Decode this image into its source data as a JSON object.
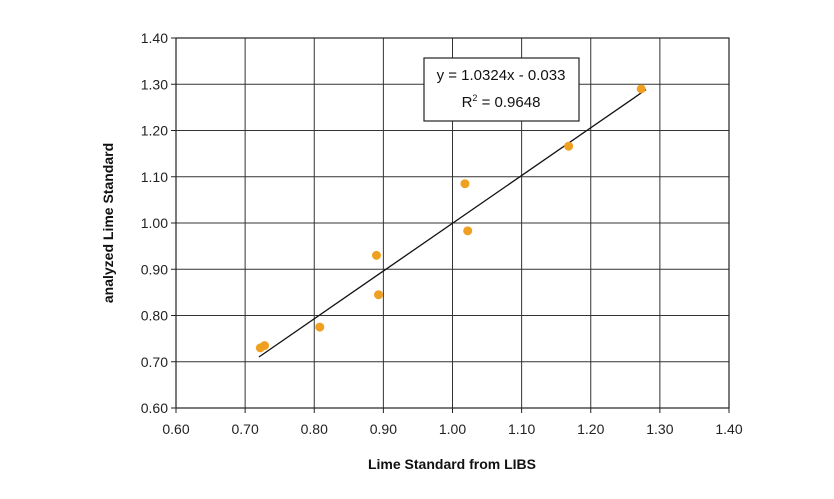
{
  "chart_data": {
    "type": "scatter",
    "xlabel": "Lime Standard from LIBS",
    "ylabel": "analyzed Lime Standard",
    "xlim": [
      0.6,
      1.4
    ],
    "ylim": [
      0.6,
      1.4
    ],
    "x_ticks": [
      "0.60",
      "0.70",
      "0.80",
      "0.90",
      "1.00",
      "1.10",
      "1.20",
      "1.30",
      "1.40"
    ],
    "y_ticks": [
      "0.60",
      "0.70",
      "0.80",
      "0.90",
      "1.00",
      "1.10",
      "1.20",
      "1.30",
      "1.40"
    ],
    "grid": true,
    "point_color": "#f0a020",
    "points": [
      {
        "x": 0.722,
        "y": 0.73
      },
      {
        "x": 0.728,
        "y": 0.735
      },
      {
        "x": 0.808,
        "y": 0.775
      },
      {
        "x": 0.89,
        "y": 0.93
      },
      {
        "x": 0.893,
        "y": 0.845
      },
      {
        "x": 1.018,
        "y": 1.085
      },
      {
        "x": 1.022,
        "y": 0.983
      },
      {
        "x": 1.168,
        "y": 1.166
      },
      {
        "x": 1.273,
        "y": 1.29
      }
    ],
    "trendline": {
      "slope": 1.0324,
      "intercept": -0.033,
      "x_range": [
        0.72,
        1.28
      ],
      "equation_label": "y = 1.0324x - 0.033",
      "r2_label_prefix": "R",
      "r2_label_sup": "2",
      "r2_label_suffix": " = 0.9648"
    }
  }
}
